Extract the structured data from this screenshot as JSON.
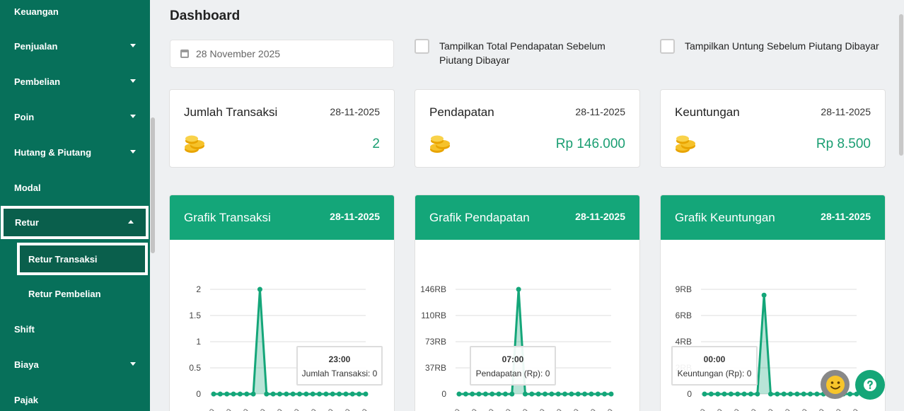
{
  "sidebar": {
    "items": [
      {
        "label": "Keuangan",
        "caret": false
      },
      {
        "label": "Penjualan",
        "caret": true
      },
      {
        "label": "Pembelian",
        "caret": true
      },
      {
        "label": "Poin",
        "caret": true
      },
      {
        "label": "Hutang & Piutang",
        "caret": true
      },
      {
        "label": "Modal",
        "caret": false
      },
      {
        "label": "Retur",
        "caret": true,
        "expanded": true
      },
      {
        "label": "Shift",
        "caret": false
      },
      {
        "label": "Biaya",
        "caret": true
      },
      {
        "label": "Pajak",
        "caret": false
      }
    ],
    "subitems": [
      {
        "label": "Retur Transaksi",
        "active": true
      },
      {
        "label": "Retur Pembelian",
        "active": false
      }
    ]
  },
  "page": {
    "title": "Dashboard",
    "date_value": "28 November 2025",
    "checkbox_total": "Tampilkan Total Pendapatan Sebelum Piutang Dibayar",
    "checkbox_untung": "Tampilkan Untung Sebelum Piutang Dibayar"
  },
  "cards": [
    {
      "name": "Jumlah Transaksi",
      "date": "28-11-2025",
      "value": "2"
    },
    {
      "name": "Pendapatan",
      "date": "28-11-2025",
      "value": "Rp 146.000"
    },
    {
      "name": "Keuntungan",
      "date": "28-11-2025",
      "value": "Rp 8.500"
    }
  ],
  "chart_data": [
    {
      "type": "area",
      "title": "Grafik Transaksi",
      "date": "28-11-2025",
      "yticks": [
        "2",
        "1.5",
        "1",
        "0.5",
        "0"
      ],
      "ylim": [
        0,
        2
      ],
      "points": 24,
      "peak_index": 7,
      "values": [
        0,
        0,
        0,
        0,
        0,
        0,
        0,
        2,
        0,
        0,
        0,
        0,
        0,
        0,
        0,
        0,
        0,
        0,
        0,
        0,
        0,
        0,
        0,
        0
      ],
      "tooltip": {
        "time": "23:00",
        "label": "Jumlah Transaksi: 0"
      },
      "color": "#14a679"
    },
    {
      "type": "area",
      "title": "Grafik Pendapatan",
      "date": "28-11-2025",
      "yticks": [
        "146RB",
        "110RB",
        "73RB",
        "37RB",
        "0"
      ],
      "ylim": [
        0,
        146000
      ],
      "points": 24,
      "peak_index": 9,
      "values": [
        0,
        0,
        0,
        0,
        0,
        0,
        0,
        0,
        0,
        146000,
        0,
        0,
        0,
        0,
        0,
        0,
        0,
        0,
        0,
        0,
        0,
        0,
        0,
        0
      ],
      "tooltip": {
        "time": "07:00",
        "label": "Pendapatan (Rp): 0"
      },
      "color": "#14a679"
    },
    {
      "type": "area",
      "title": "Grafik Keuntungan",
      "date": "28-11-2025",
      "yticks": [
        "9RB",
        "6RB",
        "4RB",
        "2RB",
        "0"
      ],
      "ylim": [
        0,
        9000
      ],
      "points": 24,
      "peak_index": 9,
      "values": [
        0,
        0,
        0,
        0,
        0,
        0,
        0,
        0,
        0,
        8500,
        0,
        0,
        0,
        0,
        0,
        0,
        0,
        0,
        0,
        0,
        0,
        0,
        0,
        0
      ],
      "tooltip": {
        "time": "00:00",
        "label": "Keuntungan (Rp): 0"
      },
      "color": "#14a679"
    }
  ],
  "colors": {
    "sidebar": "#07705a",
    "accent": "#14a679",
    "value": "#1a9e72"
  },
  "icons": {
    "calendar": "calendar-icon",
    "coins": "coins-icon",
    "smiley": "smiley-icon",
    "help": "help-icon"
  }
}
